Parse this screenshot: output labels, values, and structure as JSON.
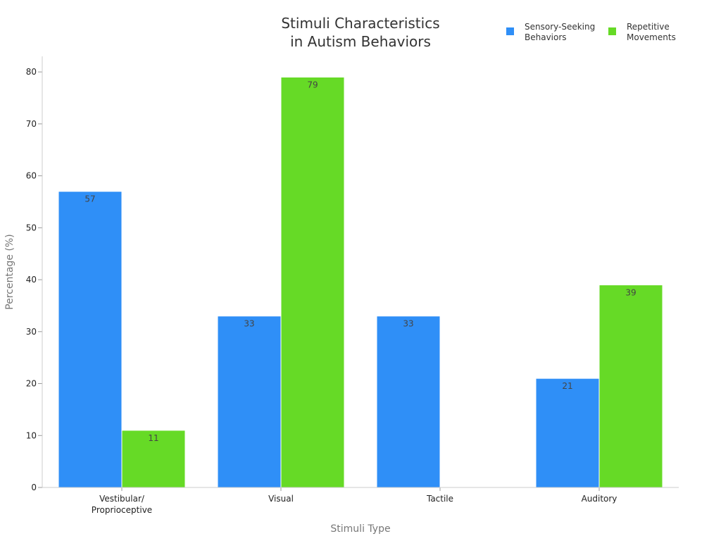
{
  "chart_data": {
    "type": "bar",
    "title_lines": [
      "Stimuli Characteristics",
      "in Autism Behaviors"
    ],
    "xlabel": "Stimuli Type",
    "ylabel": "Percentage (%)",
    "ylim": [
      0,
      83
    ],
    "yticks": [
      0,
      10,
      20,
      30,
      40,
      50,
      60,
      70,
      80
    ],
    "grid": false,
    "legend_position": "top-right",
    "categories": [
      [
        "Vestibular/",
        "Proprioceptive"
      ],
      [
        "Visual"
      ],
      [
        "Tactile"
      ],
      [
        "Auditory"
      ]
    ],
    "series": [
      {
        "name_lines": [
          "Sensory-Seeking",
          "Behaviors"
        ],
        "color": "#2f8ff7",
        "values": [
          57,
          33,
          33,
          21
        ]
      },
      {
        "name_lines": [
          "Repetitive",
          "Movements"
        ],
        "color": "#66da26",
        "values": [
          11,
          79,
          null,
          39
        ]
      }
    ]
  }
}
